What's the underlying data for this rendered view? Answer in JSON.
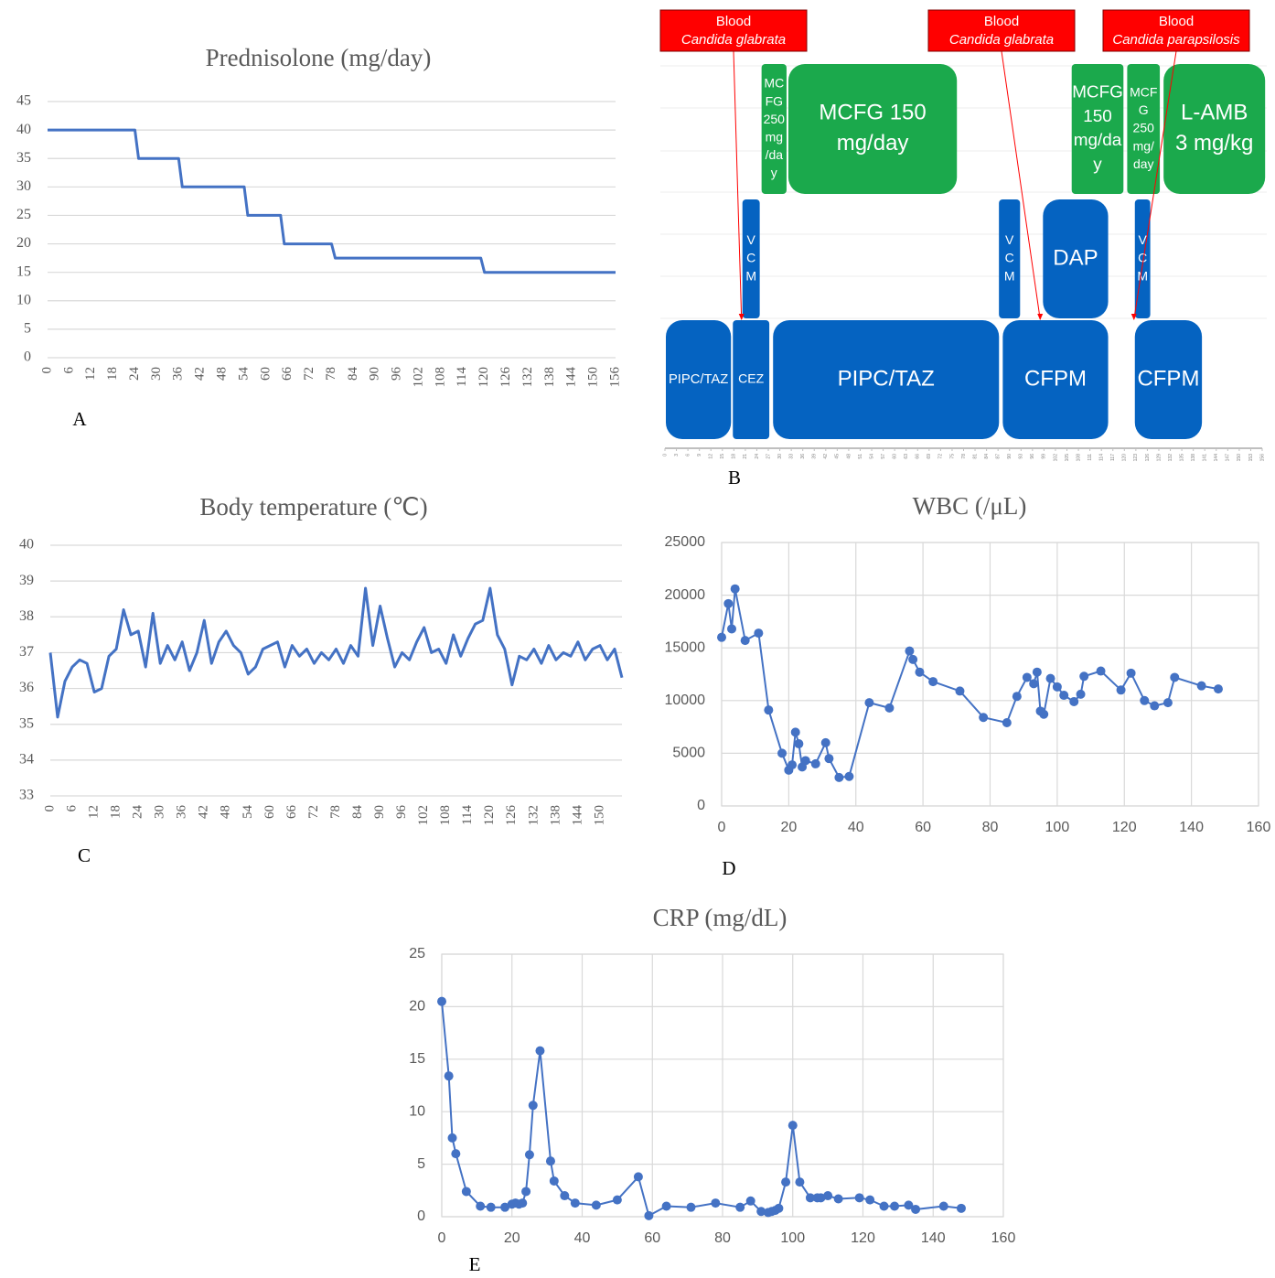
{
  "chart_data": [
    {
      "type": "line",
      "title": "Prednisolone (mg/day)",
      "panel_label": "A",
      "color": "#4472c4",
      "grid": "y",
      "x": [
        0,
        24,
        25,
        36,
        37,
        54,
        55,
        64,
        65,
        78,
        79,
        119,
        120,
        156
      ],
      "values": [
        40,
        40,
        35,
        35,
        30,
        30,
        25,
        25,
        20,
        20,
        17.5,
        17.5,
        15,
        15
      ],
      "xlim": [
        0,
        156
      ],
      "xticks": [
        0,
        6,
        12,
        18,
        24,
        30,
        36,
        42,
        48,
        54,
        60,
        66,
        72,
        78,
        84,
        90,
        96,
        102,
        108,
        114,
        120,
        126,
        132,
        138,
        144,
        150,
        156
      ],
      "ylim": [
        0,
        45
      ],
      "yticks": [
        0,
        5,
        10,
        15,
        20,
        25,
        30,
        35,
        40,
        45
      ]
    },
    {
      "type": "gantt",
      "panel_label": "B",
      "xlim": [
        0,
        156
      ],
      "xticks": [
        0,
        3,
        6,
        9,
        12,
        15,
        18,
        21,
        24,
        27,
        30,
        33,
        36,
        39,
        42,
        45,
        48,
        51,
        54,
        57,
        60,
        63,
        66,
        69,
        72,
        75,
        78,
        81,
        84,
        87,
        90,
        93,
        96,
        99,
        102,
        105,
        108,
        111,
        114,
        117,
        120,
        123,
        126,
        129,
        132,
        135,
        138,
        141,
        144,
        147,
        150,
        153,
        156
      ],
      "lanes": [
        {
          "color": "#1ba94c",
          "tasks": [
            {
              "lines": [
                "MC",
                "FG",
                "250",
                "mg",
                "/da",
                "y"
              ],
              "start": 25,
              "end": 32
            },
            {
              "lines": [
                "MCFG 150",
                "mg/day"
              ],
              "start": 32,
              "end": 76.5
            },
            {
              "lines": [
                "MCFG",
                "150",
                "mg/da",
                "y"
              ],
              "start": 106,
              "end": 120
            },
            {
              "lines": [
                "MCF",
                "G",
                "250",
                "mg/",
                "day"
              ],
              "start": 120.5,
              "end": 129.5
            },
            {
              "lines": [
                "L-AMB",
                "3 mg/kg"
              ],
              "start": 130,
              "end": 157
            }
          ]
        },
        {
          "color": "#0563c1",
          "tasks": [
            {
              "lines": [
                "V",
                "C",
                "M"
              ],
              "start": 20,
              "end": 25
            },
            {
              "lines": [
                "V",
                "C",
                "M"
              ],
              "start": 87,
              "end": 93
            },
            {
              "lines": [
                "DAP"
              ],
              "start": 98.5,
              "end": 116
            },
            {
              "lines": [
                "V",
                "C",
                "M"
              ],
              "start": 122.5,
              "end": 127
            }
          ]
        },
        {
          "color": "#0563c1",
          "tasks": [
            {
              "lines": [
                "PIPC/TAZ"
              ],
              "start": 0,
              "end": 17.5
            },
            {
              "lines": [
                "CEZ"
              ],
              "start": 17.5,
              "end": 27.5
            },
            {
              "lines": [
                "PIPC/TAZ"
              ],
              "start": 28,
              "end": 87.5
            },
            {
              "lines": [
                "CFPM"
              ],
              "start": 88,
              "end": 116
            },
            {
              "lines": [
                "CFPM"
              ],
              "start": 122.5,
              "end": 140.5
            }
          ]
        }
      ],
      "cultures": [
        {
          "site": "Blood",
          "organism": "Candida glabrata",
          "day": 20
        },
        {
          "site": "Blood",
          "organism": "Candida glabrata",
          "day": 98
        },
        {
          "site": "Blood",
          "organism": "Candida parapsilosis",
          "day": 122.5
        }
      ]
    },
    {
      "type": "line",
      "title": "Body temperature (℃)",
      "panel_label": "C",
      "color": "#4472c4",
      "grid": "y",
      "x": [
        0,
        2,
        4,
        6,
        8,
        10,
        12,
        14,
        16,
        18,
        20,
        22,
        24,
        26,
        28,
        30,
        32,
        34,
        36,
        38,
        40,
        42,
        44,
        46,
        48,
        50,
        52,
        54,
        56,
        58,
        60,
        62,
        64,
        66,
        68,
        70,
        72,
        74,
        76,
        78,
        80,
        82,
        84,
        86,
        88,
        90,
        92,
        94,
        96,
        98,
        100,
        102,
        104,
        106,
        108,
        110,
        112,
        114,
        116,
        118,
        120,
        122,
        124,
        126,
        128,
        130,
        132,
        134,
        136,
        138,
        140,
        142,
        144,
        146,
        148,
        150,
        152,
        154,
        156
      ],
      "values": [
        37.0,
        35.2,
        36.2,
        36.6,
        36.8,
        36.7,
        35.9,
        36.0,
        36.9,
        37.1,
        38.2,
        37.5,
        37.6,
        36.6,
        38.1,
        36.7,
        37.2,
        36.8,
        37.3,
        36.5,
        37.0,
        37.9,
        36.7,
        37.3,
        37.6,
        37.2,
        37.0,
        36.4,
        36.6,
        37.1,
        37.2,
        37.3,
        36.6,
        37.2,
        36.9,
        37.1,
        36.7,
        37.0,
        36.8,
        37.1,
        36.7,
        37.2,
        36.9,
        38.8,
        37.2,
        38.3,
        37.4,
        36.6,
        37.0,
        36.8,
        37.3,
        37.7,
        37.0,
        37.1,
        36.7,
        37.5,
        36.9,
        37.4,
        37.8,
        37.9,
        38.8,
        37.5,
        37.1,
        36.1,
        36.9,
        36.8,
        37.1,
        36.7,
        37.2,
        36.8,
        37.0,
        36.9,
        37.3,
        36.8,
        37.1,
        37.2,
        36.8,
        37.1,
        36.3
      ],
      "xlim": [
        0,
        156
      ],
      "xticks": [
        0,
        6,
        12,
        18,
        24,
        30,
        36,
        42,
        48,
        54,
        60,
        66,
        72,
        78,
        84,
        90,
        96,
        102,
        108,
        114,
        120,
        126,
        132,
        138,
        144,
        150
      ],
      "ylim": [
        33,
        40
      ],
      "yticks": [
        33,
        34,
        35,
        36,
        37,
        38,
        39,
        40
      ]
    },
    {
      "type": "line",
      "title": "WBC (/μL)",
      "panel_label": "D",
      "color": "#4472c4",
      "grid": "both",
      "markers": true,
      "x": [
        0,
        2,
        3,
        4,
        7,
        11,
        14,
        18,
        20,
        21,
        22,
        23,
        24,
        25,
        28,
        31,
        32,
        35,
        38,
        44,
        50,
        56,
        57,
        59,
        63,
        71,
        78,
        85,
        88,
        91,
        93,
        94,
        95,
        96,
        98,
        100,
        102,
        105,
        107,
        108,
        113,
        119,
        122,
        126,
        129,
        133,
        135,
        143,
        148
      ],
      "values": [
        16000,
        19200,
        16800,
        20600,
        15700,
        16400,
        9100,
        5000,
        3400,
        3900,
        7000,
        5900,
        3700,
        4300,
        4000,
        6000,
        4500,
        2700,
        2800,
        9800,
        9300,
        14700,
        13900,
        12700,
        11800,
        10900,
        8400,
        7900,
        10400,
        12200,
        11600,
        12700,
        9000,
        8700,
        12100,
        11300,
        10500,
        9900,
        10600,
        12300,
        12800,
        11000,
        12600,
        10000,
        9500,
        9800,
        12200,
        11400,
        11100
      ],
      "xlim": [
        0,
        160
      ],
      "xticks": [
        0,
        20,
        40,
        60,
        80,
        100,
        120,
        140,
        160
      ],
      "ylim": [
        0,
        25000
      ],
      "yticks": [
        0,
        5000,
        10000,
        15000,
        20000,
        25000
      ]
    },
    {
      "type": "line",
      "title": "CRP (mg/dL)",
      "panel_label": "E",
      "color": "#4472c4",
      "grid": "both",
      "markers": true,
      "x": [
        0,
        2,
        3,
        4,
        7,
        11,
        14,
        18,
        20,
        21,
        22,
        23,
        24,
        25,
        26,
        28,
        31,
        32,
        35,
        38,
        44,
        50,
        56,
        59,
        64,
        71,
        78,
        85,
        88,
        91,
        93,
        94,
        95,
        96,
        98,
        100,
        102,
        105,
        107,
        108,
        110,
        113,
        119,
        122,
        126,
        129,
        133,
        135,
        143,
        148
      ],
      "values": [
        20.5,
        13.4,
        7.5,
        6.0,
        2.4,
        1.0,
        0.9,
        0.9,
        1.2,
        1.3,
        1.2,
        1.3,
        2.4,
        5.9,
        10.6,
        15.8,
        5.3,
        3.4,
        2.0,
        1.3,
        1.1,
        1.6,
        3.8,
        0.1,
        1.0,
        0.9,
        1.3,
        0.9,
        1.5,
        0.5,
        0.4,
        0.5,
        0.6,
        0.8,
        3.3,
        8.7,
        3.3,
        1.8,
        1.8,
        1.8,
        2.0,
        1.7,
        1.8,
        1.6,
        1.0,
        1.0,
        1.1,
        0.7,
        1.0,
        0.8
      ],
      "xlim": [
        0,
        160
      ],
      "xticks": [
        0,
        20,
        40,
        60,
        80,
        100,
        120,
        140,
        160
      ],
      "ylim": [
        0,
        25
      ],
      "yticks": [
        0,
        5,
        10,
        15,
        20,
        25
      ]
    }
  ]
}
